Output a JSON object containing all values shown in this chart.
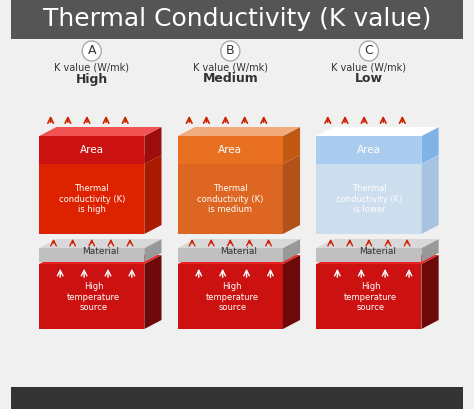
{
  "title": "Thermal Conductivity (K value)",
  "title_fontsize": 18,
  "title_bg": "#555555",
  "title_fg": "#ffffff",
  "bg_color": "#f0f0f0",
  "panels": [
    {
      "label": "A",
      "k_label": "K value (W/mk)",
      "k_value": "High",
      "top_color": "#cc1111",
      "mid_color": "#dd3322",
      "top_area_label": "Area",
      "mid_label": "Thermal\nconductivity (K)\nis high",
      "material_label": "Material",
      "bottom_label": "High\ntemperature\nsource",
      "arrow_color_top": "#cc2200",
      "heat_intensity": "high"
    },
    {
      "label": "B",
      "k_label": "K value (W/mk)",
      "k_value": "Medium",
      "top_color": "#e87020",
      "mid_color": "#dd6633",
      "top_area_label": "Area",
      "mid_label": "Thermal\nconductivity (K)\nis medium",
      "material_label": "Material",
      "bottom_label": "High\ntemperature\nsource",
      "arrow_color_top": "#cc2200",
      "heat_intensity": "medium"
    },
    {
      "label": "C",
      "k_label": "K value (W/mk)",
      "k_value": "Low",
      "top_color": "#aaccee",
      "mid_color": "#bbddff",
      "top_area_label": "Area",
      "mid_label": "Thermal\nconductivity (K)\nis lower",
      "material_label": "Material",
      "bottom_label": "High\ntemperature\nsource",
      "arrow_color_top": "#cc2200",
      "heat_intensity": "low"
    }
  ]
}
